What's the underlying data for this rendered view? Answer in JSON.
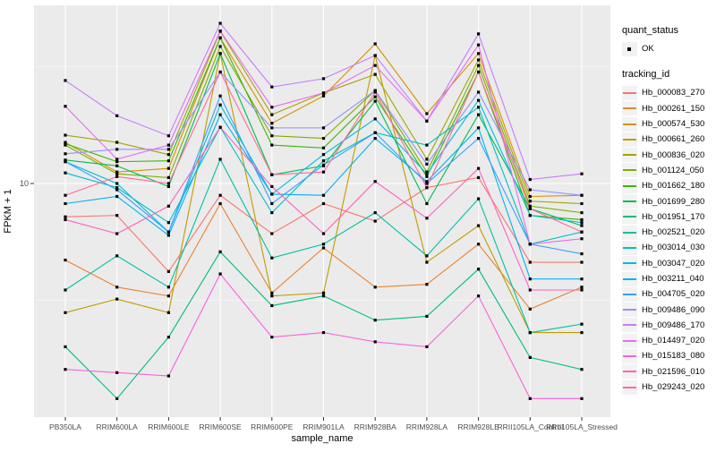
{
  "legend": {
    "quant_status_title": "quant_status",
    "quant_status_ok_label": "OK",
    "tracking_id_title": "tracking_id"
  },
  "axes": {
    "x_title": "sample_name",
    "y_title": "FPKM + 1",
    "y_tick_label": "10"
  },
  "colors": {
    "panel_background": "#EBEBEB",
    "gridline": "#FFFFFF",
    "tick_label": "#4D4D4D",
    "point": "#000000",
    "legend_key_fill": "#F2F2F2"
  },
  "chart_data": {
    "type": "line",
    "title": "",
    "xlabel": "sample_name",
    "ylabel": "FPKM + 1",
    "y_scale": "log10",
    "ylim": [
      1.1,
      60
    ],
    "y_breaks": [
      10
    ],
    "y_break_labels": [
      "10"
    ],
    "grid": true,
    "legend_position": "right",
    "point_shape": "filled-square",
    "point_color": "#000000",
    "quant_status": "OK",
    "categories": [
      "PB350LA",
      "RRIM600LA",
      "RRIM600LE",
      "RRIM600SE",
      "RRIM600PE",
      "RRIM901LA",
      "RRIM928BA",
      "RRIM928LA",
      "RRIM928LE",
      "RRII105LA_Control",
      "RRII105LA_Stressed"
    ],
    "series": [
      {
        "name": "Hb_000083_270",
        "color": "#F8766D",
        "values": [
          7.2,
          7.3,
          4.2,
          8.9,
          6.1,
          8.2,
          6.9,
          9.6,
          10.6,
          4.6,
          4.6
        ]
      },
      {
        "name": "Hb_000261_150",
        "color": "#EA8331",
        "values": [
          4.7,
          3.6,
          3.3,
          8.2,
          3.4,
          5.3,
          3.6,
          3.7,
          5.5,
          2.9,
          3.6
        ]
      },
      {
        "name": "Hb_000574_530",
        "color": "#D89000",
        "values": [
          15.0,
          11.2,
          11.6,
          42.0,
          18.1,
          23.7,
          39.6,
          19.9,
          36.0,
          8.8,
          8.9
        ]
      },
      {
        "name": "Hb_000661_260",
        "color": "#C09B00",
        "values": [
          2.8,
          3.2,
          2.8,
          36.0,
          3.3,
          3.4,
          35.3,
          4.6,
          6.6,
          2.3,
          2.3
        ]
      },
      {
        "name": "Hb_000836_020",
        "color": "#A3A500",
        "values": [
          16.1,
          15.0,
          13.3,
          44.8,
          19.7,
          24.4,
          29.3,
          12.7,
          33.8,
          8.4,
          8.2
        ]
      },
      {
        "name": "Hb_001124_050",
        "color": "#7CAE00",
        "values": [
          14.6,
          11.0,
          10.6,
          38.6,
          16.0,
          15.6,
          25.0,
          11.2,
          32.0,
          8.0,
          7.5
        ]
      },
      {
        "name": "Hb_001662_180",
        "color": "#39B600",
        "values": [
          14.8,
          12.4,
          12.5,
          42.0,
          14.6,
          14.2,
          23.5,
          10.7,
          30.0,
          7.3,
          7.0
        ]
      },
      {
        "name": "Hb_001699_280",
        "color": "#00BB4E",
        "values": [
          12.6,
          11.9,
          9.7,
          36.0,
          10.9,
          11.9,
          22.5,
          8.2,
          19.7,
          7.8,
          6.6
        ]
      },
      {
        "name": "Hb_001951_170",
        "color": "#00BF7D",
        "values": [
          2.0,
          1.2,
          2.2,
          5.1,
          3.0,
          3.3,
          2.6,
          2.7,
          4.3,
          1.8,
          1.6
        ]
      },
      {
        "name": "Hb_002521_020",
        "color": "#00C1A3",
        "values": [
          3.5,
          4.9,
          3.6,
          12.7,
          4.8,
          5.5,
          7.5,
          4.9,
          8.6,
          2.3,
          2.5
        ]
      },
      {
        "name": "Hb_003014_030",
        "color": "#00BFC4",
        "values": [
          11.1,
          9.6,
          6.8,
          17.4,
          7.5,
          12.5,
          16.5,
          14.6,
          21.2,
          5.5,
          6.2
        ]
      },
      {
        "name": "Hb_003047_020",
        "color": "#00BAE0",
        "values": [
          12.4,
          10.0,
          6.2,
          21.7,
          9.0,
          13.3,
          18.9,
          11.0,
          22.7,
          7.3,
          6.8
        ]
      },
      {
        "name": "Hb_003211_040",
        "color": "#00B0F6",
        "values": [
          8.2,
          8.8,
          6.0,
          19.7,
          9.0,
          8.9,
          15.6,
          10.2,
          17.3,
          3.9,
          3.9
        ]
      },
      {
        "name": "Hb_004705_020",
        "color": "#35A2FF",
        "values": [
          12.4,
          9.4,
          6.2,
          23.7,
          8.2,
          12.0,
          16.5,
          10.0,
          15.6,
          5.5,
          5.0
        ]
      },
      {
        "name": "Hb_009486_090",
        "color": "#9590FF",
        "values": [
          13.4,
          14.0,
          14.0,
          30.0,
          17.3,
          17.3,
          25.0,
          12.1,
          24.6,
          9.4,
          8.9
        ]
      },
      {
        "name": "Hb_009486_170",
        "color": "#C77CFF",
        "values": [
          27.6,
          19.5,
          16.0,
          48.5,
          25.9,
          28.1,
          35.3,
          18.5,
          43.7,
          10.4,
          11.0
        ]
      },
      {
        "name": "Hb_014497_020",
        "color": "#E76BF3",
        "values": [
          21.4,
          12.7,
          14.6,
          45.0,
          21.2,
          24.4,
          32.0,
          18.5,
          39.2,
          5.5,
          5.8
        ]
      },
      {
        "name": "Hb_015183_080",
        "color": "#FA62DB",
        "values": [
          1.6,
          1.55,
          1.5,
          4.1,
          2.2,
          2.3,
          2.1,
          2.0,
          3.3,
          1.2,
          1.2
        ]
      },
      {
        "name": "Hb_021596_010",
        "color": "#FF62BC",
        "values": [
          7.0,
          6.1,
          8.0,
          17.4,
          9.7,
          6.1,
          10.2,
          7.1,
          11.6,
          3.5,
          3.5
        ]
      },
      {
        "name": "Hb_029243_020",
        "color": "#FF6A98",
        "values": [
          8.9,
          10.7,
          10.0,
          30.0,
          10.9,
          11.2,
          24.6,
          9.6,
          30.0,
          7.8,
          6.2
        ]
      }
    ]
  }
}
